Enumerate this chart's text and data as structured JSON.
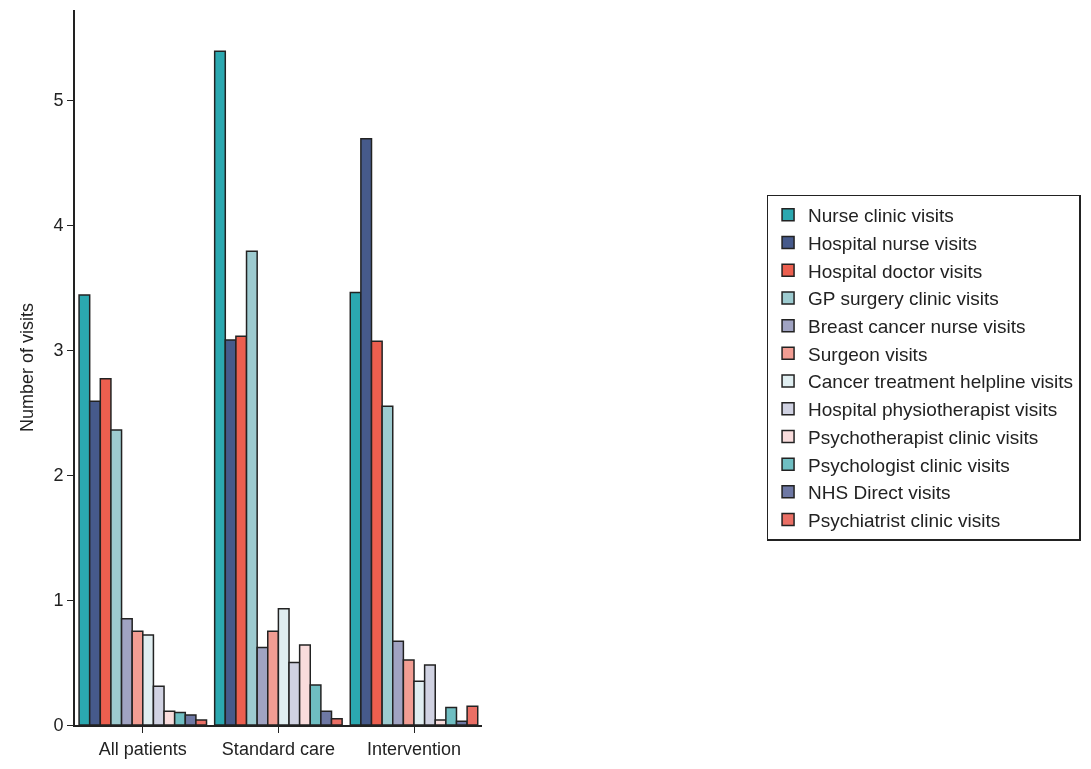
{
  "chart_data": {
    "type": "bar",
    "ylabel": "Number of visits",
    "categories": [
      "All patients",
      "Standard care",
      "Intervention"
    ],
    "ylim": [
      0,
      5.72
    ],
    "yticks": [
      0,
      1,
      2,
      3,
      4,
      5
    ],
    "legend": "right",
    "series": [
      {
        "name": "Nurse clinic visits",
        "color": "#2ba8b0",
        "values": [
          3.44,
          5.39,
          3.46
        ]
      },
      {
        "name": "Hospital nurse visits",
        "color": "#465a8b",
        "values": [
          2.59,
          3.08,
          4.69
        ]
      },
      {
        "name": "Hospital doctor visits",
        "color": "#ec5f4f",
        "values": [
          2.77,
          3.11,
          3.07
        ]
      },
      {
        "name": "GP surgery clinic visits",
        "color": "#9dcbd0",
        "values": [
          2.36,
          3.79,
          2.55
        ]
      },
      {
        "name": "Breast cancer nurse visits",
        "color": "#a0a3c2",
        "values": [
          0.85,
          0.62,
          0.67
        ]
      },
      {
        "name": "Surgeon visits",
        "color": "#f29d93",
        "values": [
          0.75,
          0.75,
          0.52
        ]
      },
      {
        "name": "Cancer treatment helpline visits",
        "color": "#e0eef1",
        "values": [
          0.72,
          0.93,
          0.35
        ]
      },
      {
        "name": "Hospital physiotherapist visits",
        "color": "#d0d2e2",
        "values": [
          0.31,
          0.5,
          0.48
        ]
      },
      {
        "name": "Psychotherapist clinic visits",
        "color": "#f9dcdc",
        "values": [
          0.11,
          0.64,
          0.04
        ]
      },
      {
        "name": "Psychologist clinic visits",
        "color": "#6fbec2",
        "values": [
          0.1,
          0.32,
          0.14
        ]
      },
      {
        "name": "NHS Direct visits",
        "color": "#6e78a4",
        "values": [
          0.08,
          0.11,
          0.03
        ]
      },
      {
        "name": "Psychiatrist clinic visits",
        "color": "#ea6f65",
        "values": [
          0.04,
          0.05,
          0.15
        ]
      }
    ]
  }
}
